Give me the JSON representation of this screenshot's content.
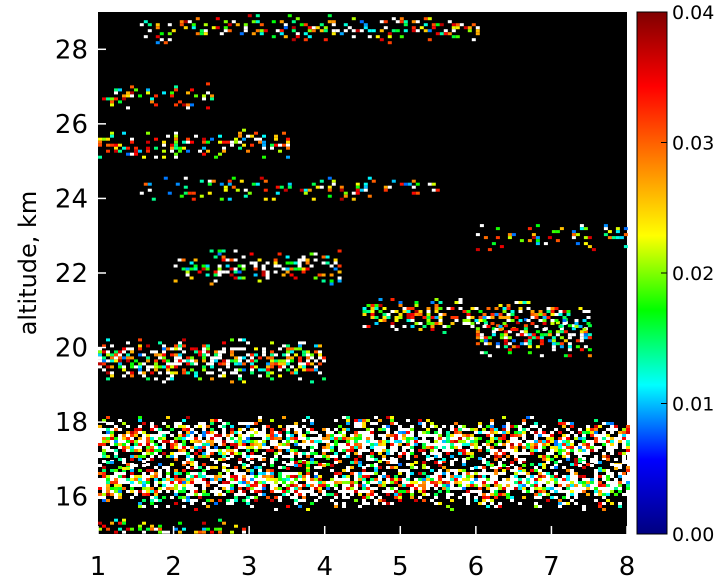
{
  "chart_data": {
    "type": "heatmap",
    "title": "",
    "xlabel": "",
    "ylabel": "altitude, km",
    "xlim": [
      1,
      8
    ],
    "ylim": [
      15,
      29
    ],
    "x_ticks": [
      1,
      2,
      3,
      4,
      5,
      6,
      7,
      8
    ],
    "y_ticks": [
      16,
      18,
      20,
      22,
      24,
      26,
      28
    ],
    "colorbar": {
      "range": [
        0.0,
        0.04
      ],
      "ticks": [
        "0.00",
        "0.01",
        "0.02",
        "0.03",
        "0.04"
      ],
      "colormap": [
        "#000080",
        "#0000ff",
        "#00ffff",
        "#00ff00",
        "#ffff00",
        "#ff8000",
        "#ff0000",
        "#800000"
      ]
    },
    "background_color": "#000000",
    "saturated_color": "#ffffff",
    "bands": [
      {
        "altitude": 16.4,
        "x_start": 1.0,
        "x_end": 8.0,
        "intensity": 0.9
      },
      {
        "altitude": 17.5,
        "x_start": 1.0,
        "x_end": 8.0,
        "intensity": 0.9
      },
      {
        "altitude": 19.7,
        "x_start": 1.0,
        "x_end": 4.0,
        "intensity": 0.7
      },
      {
        "altitude": 20.3,
        "x_start": 6.0,
        "x_end": 7.5,
        "intensity": 0.6
      },
      {
        "altitude": 20.9,
        "x_start": 4.5,
        "x_end": 7.5,
        "intensity": 0.5
      },
      {
        "altitude": 22.2,
        "x_start": 2.0,
        "x_end": 4.2,
        "intensity": 0.5
      },
      {
        "altitude": 23.0,
        "x_start": 6.0,
        "x_end": 8.0,
        "intensity": 0.3
      },
      {
        "altitude": 24.3,
        "x_start": 1.5,
        "x_end": 5.5,
        "intensity": 0.25
      },
      {
        "altitude": 25.5,
        "x_start": 1.0,
        "x_end": 3.5,
        "intensity": 0.4
      },
      {
        "altitude": 26.8,
        "x_start": 1.0,
        "x_end": 2.5,
        "intensity": 0.3
      },
      {
        "altitude": 28.6,
        "x_start": 1.5,
        "x_end": 6.0,
        "intensity": 0.35
      },
      {
        "altitude": 15.1,
        "x_start": 1.0,
        "x_end": 3.0,
        "intensity": 0.3
      }
    ]
  }
}
